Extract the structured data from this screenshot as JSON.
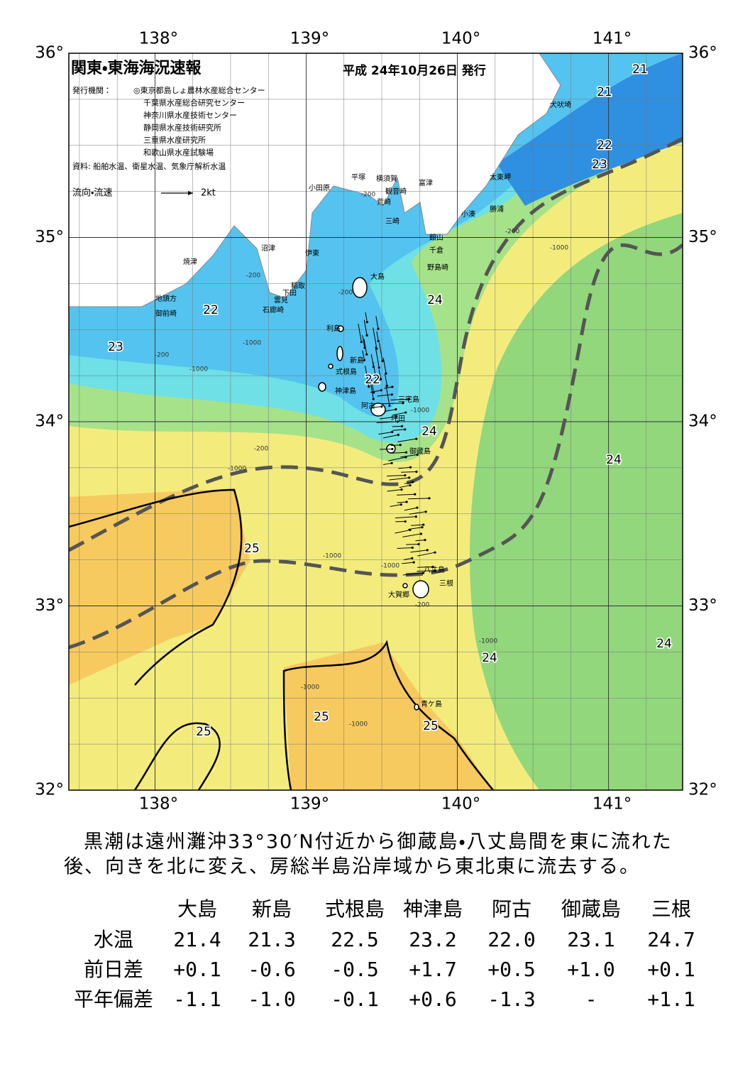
{
  "header": {
    "title": "関東・東海海況速報",
    "date": "平成 24年10月26日 発行",
    "publisher_label": "発行機関：",
    "publishers": [
      "◎東京都島しょ農林水産総合センター",
      "千葉県水産総合研究センター",
      "神奈川県水産技術センター",
      "静岡県水産技術研究所",
      "三重県水産研究所",
      "和歌山県水産試験場"
    ],
    "sources": "資料: 船舶水温、衛星水温、気象庁解析水温"
  },
  "legend": {
    "label": "流向・流速",
    "scale": "2kt"
  },
  "map": {
    "lonlim": [
      137.43,
      141.49
    ],
    "latlim": [
      32,
      36
    ],
    "lon_ticks": [
      {
        "value": 138,
        "label": "138°"
      },
      {
        "value": 139,
        "label": "139°"
      },
      {
        "value": 140,
        "label": "140°"
      },
      {
        "value": 141,
        "label": "141°"
      }
    ],
    "lat_ticks": [
      {
        "value": 36,
        "label": "36°"
      },
      {
        "value": 35,
        "label": "35°"
      },
      {
        "value": 34,
        "label": "34°"
      },
      {
        "value": 33,
        "label": "33°"
      },
      {
        "value": 32,
        "label": "32°"
      }
    ],
    "place_names": [
      "犬吠埼",
      "太東岬",
      "勝浦",
      "小湊",
      "富津",
      "横須賀",
      "観音崎",
      "平塚",
      "荒崎",
      "三崎",
      "小田原",
      "館山",
      "千倉",
      "野島崎",
      "沼津",
      "伊東",
      "大島",
      "焼津",
      "稲取",
      "下田",
      "雲見",
      "石廊崎",
      "地頭方",
      "御前崎",
      "利島",
      "新島",
      "式根島",
      "神津島",
      "三宅島",
      "阿古",
      "坪田",
      "御蔵島",
      "八丈島",
      "三根",
      "大賀郷",
      "青ケ島"
    ],
    "isotherm_labels": [
      21,
      21,
      22,
      23,
      24,
      22,
      23,
      22,
      24,
      24,
      25,
      24,
      24,
      25,
      25,
      25
    ],
    "depth_labels": [
      "-200",
      "-200",
      "-1000",
      "-200",
      "-200",
      "-1000",
      "-200",
      "-1000",
      "-200",
      "-1000",
      "-1000",
      "-1000",
      "-1000",
      "-200",
      "-1000",
      "-1000",
      "-1000"
    ]
  },
  "description": {
    "lines": [
      "黒潮は遠州灘沖33°30′N付近から御蔵島・八丈島間を東に流れた",
      "後、向きを北に変え、房総半島沿岸域から東北東に流去する。"
    ]
  },
  "table": {
    "columns": [
      "大島",
      "新島",
      "式根島",
      "神津島",
      "阿古",
      "御蔵島",
      "三根"
    ],
    "rows": [
      {
        "label": "水温",
        "cells": [
          "21.4",
          "21.3",
          "22.5",
          "23.2",
          "22.0",
          "23.1",
          "24.7"
        ]
      },
      {
        "label": "前日差",
        "cells": [
          "+0.1",
          "-0.6",
          "-0.5",
          "+1.7",
          "+0.5",
          "+1.0",
          "+0.1"
        ]
      },
      {
        "label": "平年偏差",
        "cells": [
          "-1.1",
          "-1.0",
          "-0.1",
          "+0.6",
          "-1.3",
          "-",
          "+1.1"
        ]
      }
    ]
  }
}
